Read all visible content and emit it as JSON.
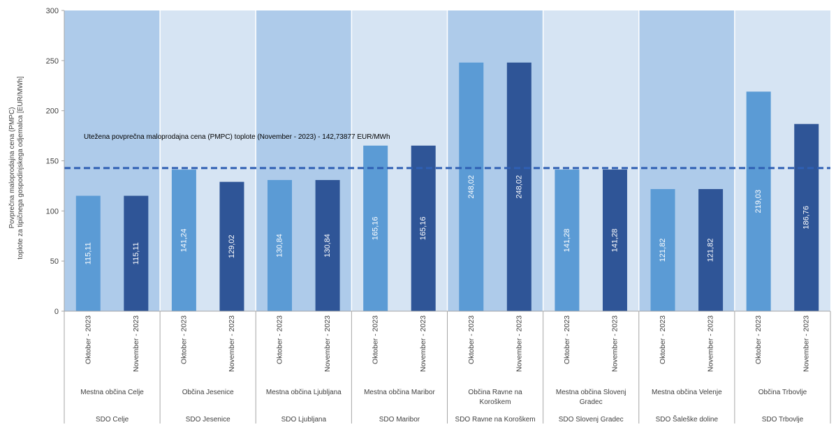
{
  "colors": {
    "band_dark": "#aecbea",
    "band_light": "#d6e4f3",
    "bar_oktober": "#5b9bd5",
    "bar_november": "#2f5597",
    "reference_line": "#2f5fb3",
    "axis": "#a6a6a6",
    "text": "#404040"
  },
  "chart_data": {
    "type": "bar",
    "ylabel_lines": [
      "Povprečna maloprodajna cena (PMPC)",
      "toplote za tipičnega gospodinjskega odjemalca  [EUR/MWh]"
    ],
    "ylim": [
      0,
      300
    ],
    "yticks": [
      "0",
      "50",
      "100",
      "150",
      "200",
      "250",
      "300"
    ],
    "grid": false,
    "bars_per_group": [
      "Oktober - 2023",
      "November - 2023"
    ],
    "groups": [
      {
        "supplier": "SDO Celje",
        "municipality": [
          "Mestna občina Celje"
        ],
        "values": [
          115.11,
          115.11
        ],
        "labels": [
          "115,11",
          "115,11"
        ]
      },
      {
        "supplier": "SDO Jesenice",
        "municipality": [
          "Občina Jesenice"
        ],
        "values": [
          141.24,
          129.02
        ],
        "labels": [
          "141,24",
          "129,02"
        ]
      },
      {
        "supplier": "SDO Ljubljana",
        "municipality": [
          "Mestna občina Ljubljana"
        ],
        "values": [
          130.84,
          130.84
        ],
        "labels": [
          "130,84",
          "130,84"
        ]
      },
      {
        "supplier": "SDO Maribor",
        "municipality": [
          "Mestna občina Maribor"
        ],
        "values": [
          165.16,
          165.16
        ],
        "labels": [
          "165,16",
          "165,16"
        ]
      },
      {
        "supplier": "SDO Ravne na Koroškem",
        "municipality": [
          "Občina Ravne na",
          "Koroškem"
        ],
        "values": [
          248.02,
          248.02
        ],
        "labels": [
          "248,02",
          "248,02"
        ]
      },
      {
        "supplier": "SDO Slovenj Gradec",
        "municipality": [
          "Mestna občina Slovenj",
          "Gradec"
        ],
        "values": [
          141.28,
          141.28
        ],
        "labels": [
          "141,28",
          "141,28"
        ]
      },
      {
        "supplier": "SDO Šaleške doline",
        "municipality": [
          "Mestna občina Velenje"
        ],
        "values": [
          121.82,
          121.82
        ],
        "labels": [
          "121,82",
          "121,82"
        ]
      },
      {
        "supplier": "SDO Trbovlje",
        "municipality": [
          "Občina Trbovlje"
        ],
        "values": [
          219.03,
          186.76
        ],
        "labels": [
          "219,03",
          "186,76"
        ]
      }
    ],
    "reference_line": {
      "value": 142.73877,
      "label": "Utežena povprečna maloprodajna cena (PMPC) toplote (November - 2023) - 142,73877  EUR/MWh"
    }
  }
}
